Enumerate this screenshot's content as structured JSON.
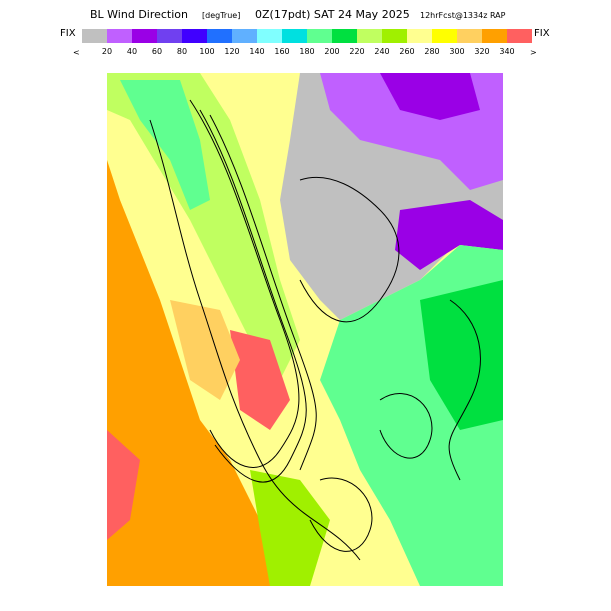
{
  "header": {
    "title": "BL Wind Direction",
    "units": "[degTrue]",
    "time": "0Z(17pdt) SAT 24 May 2025",
    "forecast": "12hrFcst@1334z RAP"
  },
  "colorbar": {
    "left_label": "FIX",
    "right_label": "FIX",
    "under": "<",
    "over": ">",
    "ticks": [
      20,
      40,
      60,
      80,
      100,
      120,
      140,
      160,
      180,
      200,
      220,
      240,
      260,
      280,
      300,
      320,
      340
    ],
    "colors": [
      "#c0c0c0",
      "#c060ff",
      "#9a00e6",
      "#7040f0",
      "#4000ff",
      "#2070ff",
      "#60b0ff",
      "#80ffff",
      "#00e0e0",
      "#60ff90",
      "#00e040",
      "#c0ff60",
      "#a0f000",
      "#ffff90",
      "#ffff00",
      "#ffd060",
      "#ffa000",
      "#ff6060"
    ]
  }
}
